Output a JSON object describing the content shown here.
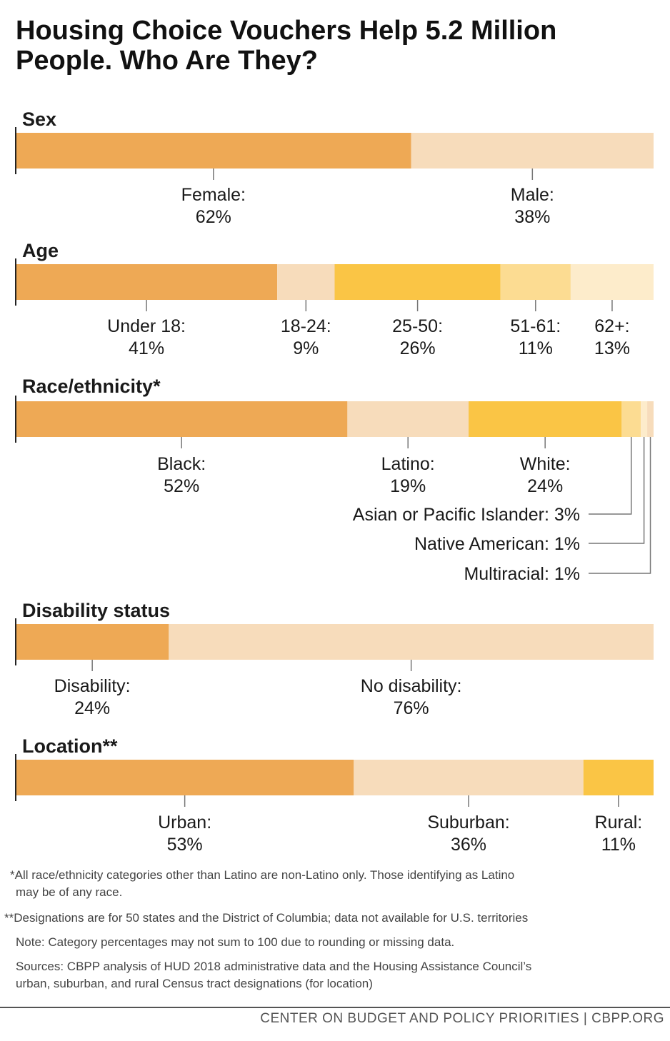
{
  "title_line1": "Housing Choice Vouchers Help 5.2 Million",
  "title_line2": "People. Who Are They?",
  "colors": {
    "dark_orange": "#eea955",
    "light_peach": "#f7dcbb",
    "yellow": "#fac545",
    "light_yellow": "#fcdc92",
    "pale_cream": "#fdeccb",
    "leader_line": "#777777"
  },
  "chart_data": [
    {
      "type": "bar",
      "subtype": "stacked-100",
      "title": "Sex",
      "categories": [
        "Female:",
        "Male:"
      ],
      "values": [
        62,
        38
      ],
      "labels": [
        "62%",
        "38%"
      ]
    },
    {
      "type": "bar",
      "subtype": "stacked-100",
      "title": "Age",
      "categories": [
        "Under 18:",
        "18-24:",
        "25-50:",
        "51-61:",
        "62+:"
      ],
      "values": [
        41,
        9,
        26,
        11,
        13
      ],
      "labels": [
        "41%",
        "9%",
        "26%",
        "11%",
        "13%"
      ]
    },
    {
      "type": "bar",
      "subtype": "stacked-100",
      "title": "Race/ethnicity*",
      "categories": [
        "Black:",
        "Latino:",
        "White:",
        "Asian or Pacific Islander:",
        "Native American:",
        "Multiracial:"
      ],
      "values": [
        52,
        19,
        24,
        3,
        1,
        1
      ],
      "labels": [
        "52%",
        "19%",
        "24%",
        "3%",
        "1%",
        "1%"
      ]
    },
    {
      "type": "bar",
      "subtype": "stacked-100",
      "title": "Disability status",
      "categories": [
        "Disability:",
        "No disability:"
      ],
      "values": [
        24,
        76
      ],
      "labels": [
        "24%",
        "76%"
      ]
    },
    {
      "type": "bar",
      "subtype": "stacked-100",
      "title": "Location**",
      "categories": [
        "Urban:",
        "Suburban:",
        "Rural:"
      ],
      "values": [
        53,
        36,
        11
      ],
      "labels": [
        "53%",
        "36%",
        "11%"
      ]
    }
  ],
  "notes": {
    "star1_a": "*All race/ethnicity categories other than Latino are non-Latino only. Those identifying as Latino",
    "star1_b": "may be of any race.",
    "star2": "**Designations are for 50 states and the District of Columbia; data not available for U.S. territories",
    "note": "Note: Category percentages may not sum to 100 due to rounding or missing data.",
    "sources_a": "Sources: CBPP analysis of HUD 2018 administrative data and the Housing Assistance Council’s",
    "sources_b": "urban, suburban, and rural Census tract designations (for location)"
  },
  "footer": "CENTER ON BUDGET AND POLICY PRIORITIES | CBPP.ORG"
}
